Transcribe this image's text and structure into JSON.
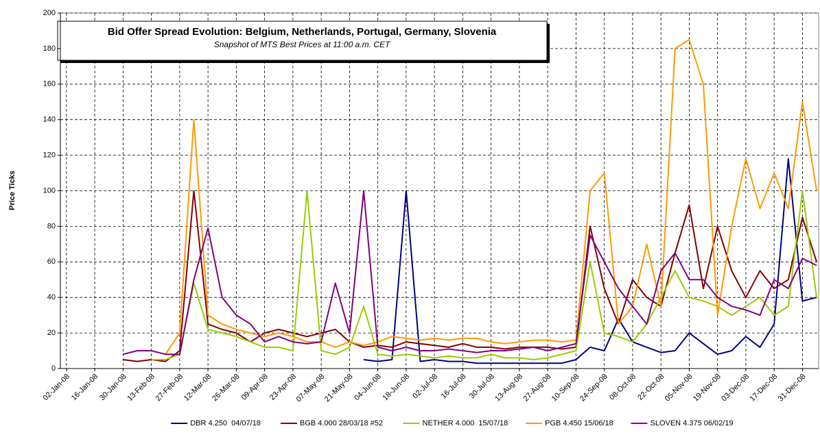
{
  "chart_data": {
    "type": "line",
    "title": "Bid Offer Spread Evolution: Belgium, Netherlands, Portugal, Germany, Slovenia",
    "subtitle": "Snapshot of MTS Best Prices at 11:00 a.m. CET",
    "y_label": "Price Ticks",
    "grid": true,
    "legend": "bottom",
    "ylim": [
      0,
      200
    ],
    "yticks": [
      0,
      20,
      40,
      60,
      80,
      100,
      120,
      140,
      160,
      180,
      200
    ],
    "xlim": [
      "2007-12-30",
      "2009-01-08"
    ],
    "xticks": [
      {
        "value": "2008-01-02",
        "label": "02-Jan-08"
      },
      {
        "value": "2008-01-16",
        "label": "16-Jan-08"
      },
      {
        "value": "2008-01-30",
        "label": "30-Jan-08"
      },
      {
        "value": "2008-02-13",
        "label": "13-Feb-08"
      },
      {
        "value": "2008-02-27",
        "label": "27-Feb-08"
      },
      {
        "value": "2008-03-12",
        "label": "12-Mar-08"
      },
      {
        "value": "2008-03-26",
        "label": "26-Mar-08"
      },
      {
        "value": "2008-04-09",
        "label": "09-Apr-08"
      },
      {
        "value": "2008-04-23",
        "label": "23-Apr-08"
      },
      {
        "value": "2008-05-07",
        "label": "07-May-08"
      },
      {
        "value": "2008-05-21",
        "label": "21-May-08"
      },
      {
        "value": "2008-06-04",
        "label": "04-Jun-08"
      },
      {
        "value": "2008-06-18",
        "label": "18-Jun-08"
      },
      {
        "value": "2008-07-02",
        "label": "02-Jul-08"
      },
      {
        "value": "2008-07-16",
        "label": "16-Jul-08"
      },
      {
        "value": "2008-07-30",
        "label": "30-Jul-08"
      },
      {
        "value": "2008-08-13",
        "label": "13-Aug-08"
      },
      {
        "value": "2008-08-27",
        "label": "27-Aug-08"
      },
      {
        "value": "2008-09-10",
        "label": "10-Sep-08"
      },
      {
        "value": "2008-09-24",
        "label": "24-Sep-08"
      },
      {
        "value": "2008-10-08",
        "label": "08-Oct-08"
      },
      {
        "value": "2008-10-22",
        "label": "22-Oct-08"
      },
      {
        "value": "2008-11-05",
        "label": "05-Nov-08"
      },
      {
        "value": "2008-11-19",
        "label": "19-Nov-08"
      },
      {
        "value": "2008-12-03",
        "label": "03-Dec-08"
      },
      {
        "value": "2008-12-17",
        "label": "17-Dec-08"
      },
      {
        "value": "2008-12-31",
        "label": "31-Dec-08"
      }
    ],
    "x": [
      "2008-01-30",
      "2008-02-06",
      "2008-02-13",
      "2008-02-20",
      "2008-02-27",
      "2008-03-05",
      "2008-03-12",
      "2008-03-19",
      "2008-03-26",
      "2008-04-02",
      "2008-04-09",
      "2008-04-16",
      "2008-04-23",
      "2008-04-30",
      "2008-05-07",
      "2008-05-14",
      "2008-05-21",
      "2008-05-28",
      "2008-06-04",
      "2008-06-11",
      "2008-06-18",
      "2008-06-25",
      "2008-07-02",
      "2008-07-09",
      "2008-07-16",
      "2008-07-23",
      "2008-07-30",
      "2008-08-06",
      "2008-08-13",
      "2008-08-20",
      "2008-08-27",
      "2008-09-03",
      "2008-09-10",
      "2008-09-17",
      "2008-09-24",
      "2008-10-01",
      "2008-10-08",
      "2008-10-15",
      "2008-10-22",
      "2008-10-29",
      "2008-11-05",
      "2008-11-12",
      "2008-11-19",
      "2008-11-26",
      "2008-12-03",
      "2008-12-10",
      "2008-12-17",
      "2008-12-24",
      "2008-12-31",
      "2009-01-07"
    ],
    "series": [
      {
        "name": "DBR 4.250  04/07/18",
        "color": "#000080",
        "values": [
          null,
          null,
          null,
          null,
          null,
          null,
          null,
          null,
          null,
          null,
          null,
          null,
          null,
          null,
          null,
          null,
          null,
          5,
          4,
          5,
          100,
          4,
          5,
          4,
          4,
          3,
          3,
          3,
          3,
          3,
          3,
          3,
          5,
          12,
          10,
          28,
          15,
          12,
          9,
          10,
          20,
          14,
          8,
          10,
          18,
          12,
          25,
          118,
          38,
          40
        ]
      },
      {
        "name": "BGB 4.000 28/03/18 #52",
        "color": "#800000",
        "values": [
          5,
          4,
          5,
          4,
          10,
          100,
          25,
          22,
          20,
          15,
          20,
          22,
          20,
          18,
          20,
          22,
          15,
          12,
          13,
          12,
          15,
          14,
          13,
          12,
          14,
          12,
          12,
          11,
          12,
          12,
          12,
          11,
          12,
          80,
          45,
          25,
          50,
          40,
          35,
          65,
          92,
          45,
          80,
          55,
          40,
          55,
          45,
          50,
          85,
          60
        ]
      },
      {
        "name": "NETHER 4.000  15/07/18",
        "color": "#99cc00",
        "values": [
          null,
          null,
          5,
          5,
          8,
          48,
          22,
          20,
          18,
          15,
          12,
          12,
          10,
          100,
          10,
          8,
          12,
          35,
          8,
          7,
          8,
          7,
          6,
          7,
          6,
          6,
          8,
          6,
          6,
          5,
          6,
          8,
          10,
          60,
          20,
          18,
          15,
          25,
          40,
          55,
          40,
          38,
          35,
          30,
          35,
          40,
          30,
          35,
          100,
          40
        ]
      },
      {
        "name": "PGB 4.450 15/06/18",
        "color": "#ff9900",
        "values": [
          null,
          null,
          null,
          8,
          20,
          140,
          30,
          25,
          22,
          20,
          18,
          20,
          18,
          15,
          15,
          12,
          15,
          13,
          15,
          18,
          17,
          16,
          17,
          16,
          17,
          17,
          15,
          14,
          15,
          16,
          16,
          15,
          16,
          100,
          110,
          25,
          35,
          70,
          35,
          180,
          185,
          160,
          30,
          80,
          118,
          90,
          110,
          90,
          150,
          100
        ]
      },
      {
        "name": "SLOVEN 4.375 06/02/19",
        "color": "#800080",
        "values": [
          8,
          10,
          10,
          8,
          8,
          50,
          79,
          40,
          30,
          25,
          15,
          18,
          15,
          14,
          15,
          48,
          20,
          100,
          12,
          10,
          12,
          10,
          10,
          11,
          10,
          9,
          10,
          10,
          11,
          12,
          10,
          12,
          14,
          75,
          60,
          45,
          35,
          25,
          55,
          65,
          50,
          50,
          40,
          35,
          33,
          30,
          50,
          45,
          62,
          58
        ]
      }
    ]
  }
}
